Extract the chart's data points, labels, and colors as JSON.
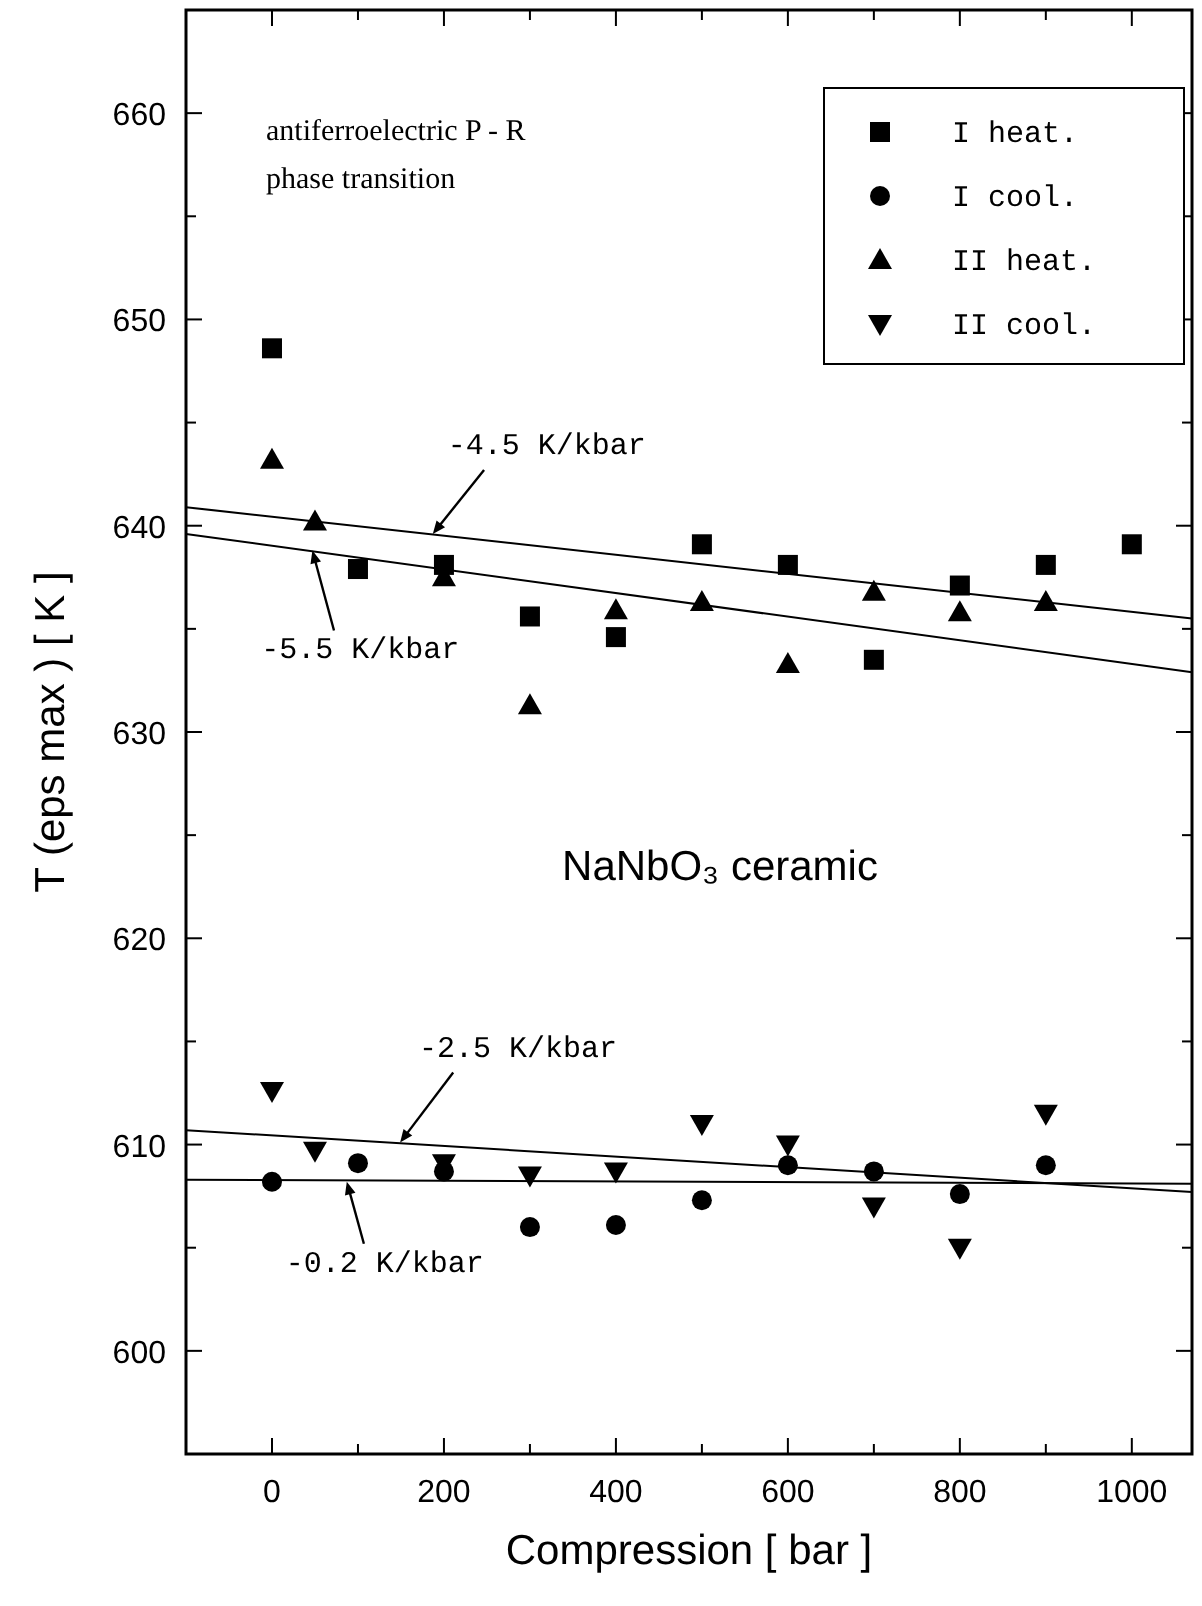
{
  "chart_data": {
    "type": "scatter",
    "xlabel": "Compression  [ bar ]",
    "ylabel": "T  (eps max )  [ K ]",
    "xlim": [
      -100,
      1070
    ],
    "ylim": [
      595,
      665
    ],
    "xticks": [
      0,
      {
        "value": 100,
        "label": null
      },
      200,
      {
        "value": 300,
        "label": null
      },
      400,
      {
        "value": 500,
        "label": null
      },
      600,
      {
        "value": 700,
        "label": null
      },
      800,
      {
        "value": 900,
        "label": null
      },
      1000
    ],
    "yticks": [
      {
        "value": 595,
        "label": null
      },
      600,
      {
        "value": 605,
        "label": null
      },
      610,
      {
        "value": 615,
        "label": null
      },
      620,
      {
        "value": 625,
        "label": null
      },
      630,
      {
        "value": 635,
        "label": null
      },
      640,
      {
        "value": 645,
        "label": null
      },
      650,
      {
        "value": 655,
        "label": null
      },
      660
    ],
    "grid": false,
    "legend": "top right",
    "series": [
      {
        "name": "I heat.",
        "color": "#000000",
        "marker": "square",
        "x": [
          0,
          100,
          200,
          300,
          400,
          500,
          600,
          700,
          800,
          900,
          1000
        ],
        "values": [
          648.6,
          637.9,
          638.1,
          635.6,
          634.6,
          639.1,
          638.1,
          633.5,
          637.1,
          638.1,
          639.1
        ]
      },
      {
        "name": "I cool.",
        "color": "#000000",
        "marker": "circle",
        "x": [
          0,
          100,
          200,
          300,
          400,
          500,
          600,
          700,
          800,
          900
        ],
        "values": [
          608.2,
          609.1,
          608.7,
          606.0,
          606.1,
          607.3,
          609.0,
          608.7,
          607.6,
          609.0
        ]
      },
      {
        "name": "II heat.",
        "color": "#000000",
        "marker": "triangle",
        "x": [
          0,
          50,
          200,
          300,
          400,
          500,
          600,
          700,
          800,
          900
        ],
        "values": [
          643.2,
          640.2,
          637.5,
          631.3,
          635.9,
          636.3,
          633.3,
          636.8,
          635.8,
          636.3
        ]
      },
      {
        "name": "II cool.",
        "color": "#000000",
        "marker": "triangle-down",
        "x": [
          0,
          50,
          200,
          300,
          400,
          500,
          600,
          700,
          800,
          900
        ],
        "values": [
          612.6,
          609.7,
          609.1,
          608.5,
          608.7,
          611.0,
          610.0,
          607.0,
          605.0,
          611.5
        ]
      },
      {
        "type": "line",
        "color": "#000000",
        "marker": "none",
        "line_style": "solid",
        "x": [
          -100,
          1070
        ],
        "values": [
          640.9,
          635.5
        ]
      },
      {
        "type": "line",
        "color": "#000000",
        "marker": "none",
        "line_style": "solid",
        "x": [
          -100,
          1070
        ],
        "values": [
          639.6,
          632.9
        ]
      },
      {
        "type": "line",
        "color": "#000000",
        "marker": "none",
        "line_style": "solid",
        "x": [
          -100,
          1070
        ],
        "values": [
          610.7,
          607.7
        ]
      },
      {
        "type": "line",
        "color": "#000000",
        "marker": "none",
        "line_style": "solid",
        "x": [
          -100,
          1070
        ],
        "values": [
          608.3,
          608.1
        ]
      }
    ],
    "annotations": [
      {
        "text": "-4.5 K/kbar",
        "x": 187,
        "y": 639.6
      },
      {
        "text": "-5.5 K/kbar",
        "x": 47,
        "y": 638.8
      },
      {
        "text": "-2.5 K/kbar",
        "x": 149,
        "y": 610.1
      },
      {
        "text": "-0.2 K/kbar",
        "x": 87,
        "y": 608.2
      },
      "antiferroelectric P - R\nphase transition",
      "NaNbO₃  ceramic"
    ]
  }
}
